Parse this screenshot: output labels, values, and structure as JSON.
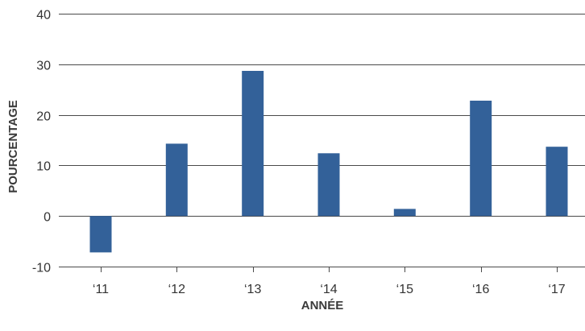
{
  "chart_data": {
    "type": "bar",
    "title": "",
    "xlabel": "ANNÉE",
    "ylabel": "POURCENTAGE",
    "categories": [
      "‘11",
      "‘12",
      "‘13",
      "‘14",
      "‘15",
      "‘16",
      "‘17"
    ],
    "values": [
      -7.2,
      14.3,
      28.7,
      12.4,
      1.4,
      22.8,
      13.7
    ],
    "yticks": [
      -10,
      0,
      10,
      20,
      30,
      40
    ],
    "ylim": [
      -10,
      40
    ],
    "grid": true,
    "bar_color": "#336199",
    "grid_color": "#4a4a4a"
  }
}
